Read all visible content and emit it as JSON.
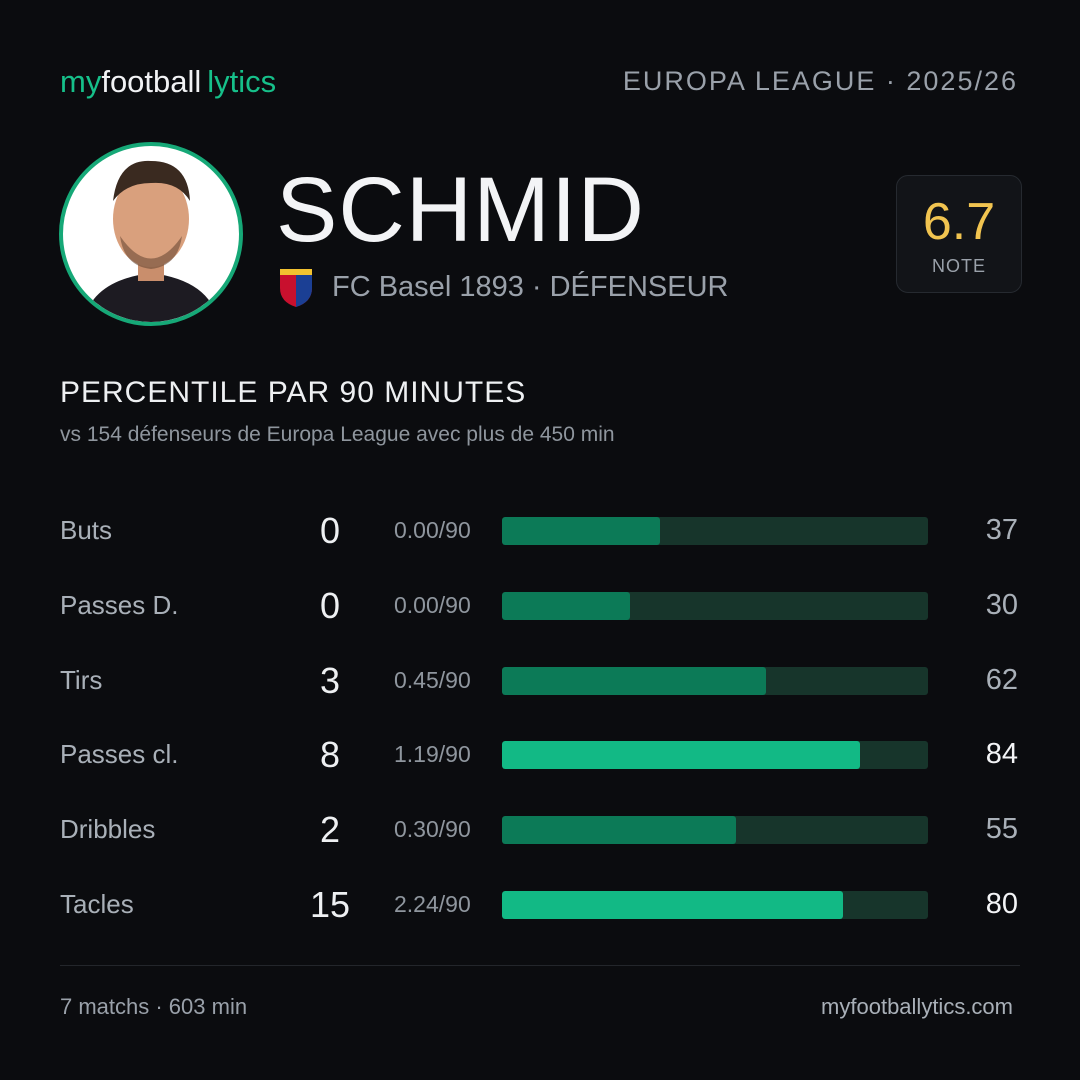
{
  "brand": {
    "parts": [
      "my",
      "football",
      "lytics"
    ]
  },
  "competition": "EUROPA LEAGUE · 2025/26",
  "player": {
    "name": "SCHMID",
    "club_line": "FC Basel 1893 · DÉFENSEUR",
    "rating": "6.7",
    "rating_label": "NOTE"
  },
  "section": {
    "title": "PERCENTILE PAR 90 MINUTES",
    "subtitle": "vs 154 défenseurs de Europa League avec plus de 450 min"
  },
  "scale": {
    "min": 0,
    "max": 100
  },
  "rows": [
    {
      "label": "Buts",
      "total": 0,
      "per90": "0.00/90",
      "percentile": 37,
      "color": "#0c7a57"
    },
    {
      "label": "Passes D.",
      "total": 0,
      "per90": "0.00/90",
      "percentile": 30,
      "color": "#0c7a57"
    },
    {
      "label": "Tirs",
      "total": 3,
      "per90": "0.45/90",
      "percentile": 62,
      "color": "#0c7a57"
    },
    {
      "label": "Passes cl.",
      "total": 8,
      "per90": "1.19/90",
      "percentile": 84,
      "color": "#12b985"
    },
    {
      "label": "Dribbles",
      "total": 2,
      "per90": "0.30/90",
      "percentile": 55,
      "color": "#0c7a57"
    },
    {
      "label": "Tacles",
      "total": 15,
      "per90": "2.24/90",
      "percentile": 80,
      "color": "#12b985"
    }
  ],
  "footer": {
    "summary": "7 matchs · 603 min",
    "site": "myfootballytics.com"
  }
}
